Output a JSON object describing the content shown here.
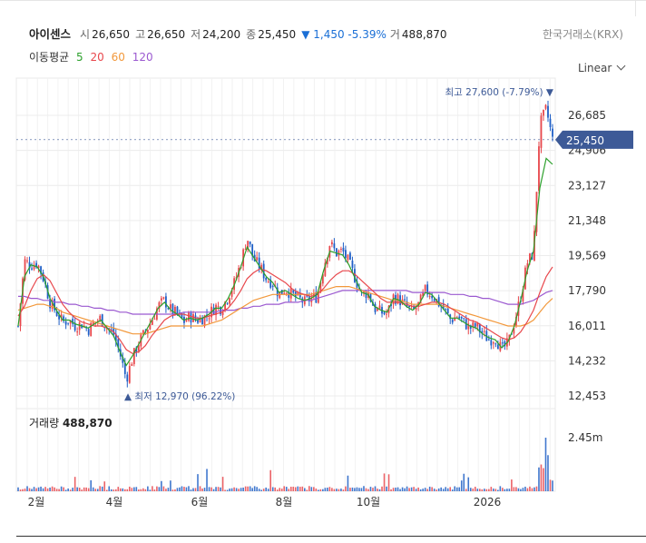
{
  "stock": {
    "name": "아이센스",
    "open_label": "시",
    "open": "26,650",
    "high_label": "고",
    "high": "26,650",
    "low_label": "저",
    "low": "24,200",
    "close_label": "종",
    "close": "25,450",
    "change": "▼ 1,450 -5.39%",
    "volume_label": "거",
    "volume": "488,870",
    "exchange": "한국거래소(KRX)"
  },
  "moving_average": {
    "label": "이동평균",
    "periods": [
      {
        "label": "5",
        "color": "#2ca02c"
      },
      {
        "label": "20",
        "color": "#e8474c"
      },
      {
        "label": "60",
        "color": "#f2983b"
      },
      {
        "label": "120",
        "color": "#9b59d0"
      }
    ]
  },
  "scale_selector": {
    "value": "Linear"
  },
  "chart_data": {
    "type": "candlestick",
    "y_ticks": [
      "26,685",
      "24,906",
      "23,127",
      "21,348",
      "19,569",
      "17,790",
      "16,011",
      "14,232",
      "12,453"
    ],
    "y_tick_values": [
      26685,
      24906,
      23127,
      21348,
      19569,
      17790,
      16011,
      14232,
      12453
    ],
    "ylim": [
      12453,
      26685
    ],
    "x_ticks": [
      "2월",
      "4월",
      "6월",
      "8월",
      "10월",
      "2026"
    ],
    "current_price_label": "25,450",
    "current_price": 25450,
    "max_annotation": "최고 27,600 (-7.79%) ▼",
    "min_annotation": "▲ 최저 12,970 (96.22%)",
    "max_price": 27600,
    "min_price": 12970,
    "price_path": [
      16000,
      19300,
      19100,
      19200,
      18400,
      17200,
      16700,
      16200,
      16300,
      16000,
      16100,
      15800,
      16200,
      16400,
      15900,
      15600,
      14600,
      13300,
      14400,
      15200,
      15700,
      16300,
      17000,
      17300,
      16800,
      16600,
      16200,
      16500,
      16300,
      16400,
      16600,
      17000,
      16900,
      17500,
      18200,
      19200,
      20500,
      19400,
      19000,
      18400,
      18200,
      17600,
      17900,
      17600,
      17400,
      17200,
      17400,
      17500,
      19000,
      20200,
      19700,
      19800,
      19200,
      18400,
      17600,
      17700,
      16900,
      16700,
      16600,
      17500,
      17300,
      17000,
      16700,
      17100,
      17800,
      17600,
      17200,
      16800,
      16300,
      16500,
      16200,
      15900,
      16000,
      15600,
      15300,
      15400,
      14800,
      15100,
      16200,
      17500,
      19200,
      19700,
      26200,
      27000,
      25450
    ],
    "ma_series": [
      {
        "name": "5",
        "values": [
          16000,
          18500,
          19100,
          19000,
          18500,
          17400,
          16800,
          16300,
          16300,
          16100,
          16000,
          15900,
          16100,
          16300,
          15900,
          15500,
          14700,
          14000,
          14500,
          15100,
          15700,
          16300,
          16900,
          17200,
          16800,
          16600,
          16300,
          16400,
          16300,
          16400,
          16600,
          16900,
          16900,
          17400,
          18100,
          19000,
          20000,
          19500,
          19000,
          18500,
          18200,
          17700,
          17800,
          17600,
          17400,
          17300,
          17400,
          17600,
          18800,
          19800,
          19700,
          19600,
          19100,
          18400,
          17700,
          17600,
          17000,
          16800,
          16700,
          17400,
          17300,
          17000,
          16800,
          17100,
          17700,
          17600,
          17200,
          16800,
          16400,
          16400,
          16200,
          16000,
          15900,
          15600,
          15400,
          15300,
          14900,
          15200,
          16000,
          17300,
          18800,
          19800,
          23000,
          24500,
          24200
        ]
      },
      {
        "name": "20",
        "values": [
          16500,
          17000,
          17800,
          18400,
          18600,
          18300,
          17700,
          17100,
          16700,
          16400,
          16200,
          16100,
          16000,
          16000,
          15900,
          15700,
          15300,
          14800,
          14600,
          14700,
          15000,
          15500,
          15900,
          16300,
          16500,
          16600,
          16600,
          16500,
          16400,
          16400,
          16500,
          16600,
          16700,
          16900,
          17300,
          17800,
          18400,
          18700,
          18900,
          18800,
          18600,
          18400,
          18200,
          17900,
          17700,
          17600,
          17500,
          17600,
          17900,
          18300,
          18600,
          18800,
          18800,
          18600,
          18300,
          18000,
          17700,
          17400,
          17200,
          17200,
          17200,
          17100,
          17000,
          17000,
          17100,
          17200,
          17200,
          17100,
          16900,
          16700,
          16500,
          16300,
          16200,
          16000,
          15800,
          15600,
          15400,
          15300,
          15400,
          15700,
          16200,
          16800,
          17700,
          18500,
          19000
        ]
      },
      {
        "name": "60",
        "values": [
          16800,
          16900,
          17000,
          17100,
          17100,
          17000,
          16900,
          16700,
          16600,
          16500,
          16400,
          16300,
          16200,
          16100,
          16000,
          15900,
          15800,
          15700,
          15600,
          15600,
          15600,
          15700,
          15800,
          15900,
          16000,
          16000,
          16000,
          16000,
          16000,
          16000,
          16100,
          16200,
          16300,
          16500,
          16700,
          16900,
          17100,
          17300,
          17400,
          17500,
          17600,
          17600,
          17600,
          17600,
          17600,
          17600,
          17600,
          17700,
          17800,
          17900,
          18000,
          18000,
          18000,
          17900,
          17800,
          17700,
          17600,
          17500,
          17400,
          17300,
          17300,
          17200,
          17100,
          17100,
          17100,
          17100,
          17100,
          17000,
          16900,
          16800,
          16700,
          16600,
          16500,
          16400,
          16300,
          16200,
          16100,
          16000,
          16000,
          16000,
          16100,
          16300,
          16700,
          17100,
          17400
        ]
      },
      {
        "name": "120",
        "values": [
          17500,
          17500,
          17400,
          17400,
          17300,
          17300,
          17200,
          17200,
          17100,
          17100,
          17000,
          17000,
          16900,
          16900,
          16800,
          16800,
          16700,
          16700,
          16600,
          16600,
          16600,
          16600,
          16600,
          16600,
          16600,
          16600,
          16700,
          16700,
          16700,
          16700,
          16700,
          16700,
          16800,
          16800,
          16800,
          16900,
          16900,
          17000,
          17000,
          17100,
          17100,
          17100,
          17200,
          17200,
          17200,
          17300,
          17300,
          17400,
          17500,
          17600,
          17700,
          17800,
          17800,
          17800,
          17800,
          17800,
          17800,
          17800,
          17800,
          17800,
          17800,
          17800,
          17700,
          17700,
          17700,
          17700,
          17700,
          17700,
          17600,
          17600,
          17600,
          17500,
          17500,
          17400,
          17400,
          17300,
          17200,
          17100,
          17100,
          17100,
          17200,
          17300,
          17500,
          17700,
          17800
        ]
      }
    ],
    "volume": {
      "title": "거래량",
      "value": "488,870",
      "tick": "2.45m",
      "tick_value": 2450000
    }
  }
}
